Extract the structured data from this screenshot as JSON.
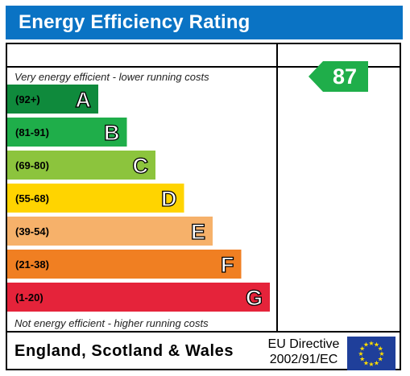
{
  "title": "Energy Efficiency Rating",
  "top_caption": "Very energy efficient - lower running costs",
  "bottom_caption": "Not energy efficient - higher running costs",
  "footer": {
    "country": "England, Scotland & Wales",
    "directive_line1": "EU Directive",
    "directive_line2": "2002/91/EC"
  },
  "chart_data": {
    "type": "bar",
    "categories": [
      "A",
      "B",
      "C",
      "D",
      "E",
      "F",
      "G"
    ],
    "ranges": [
      "(92+)",
      "(81-91)",
      "(69-80)",
      "(55-68)",
      "(39-54)",
      "(21-38)",
      "(1-20)"
    ],
    "values": [
      1,
      2,
      3,
      4,
      5,
      6,
      7
    ],
    "colors": [
      "#0f8a3c",
      "#1fae4a",
      "#8cc43d",
      "#ffd400",
      "#f6b16a",
      "#f07f22",
      "#e5233a"
    ],
    "current_rating": 87,
    "current_band": "B",
    "current_color": "#1fae4a"
  }
}
